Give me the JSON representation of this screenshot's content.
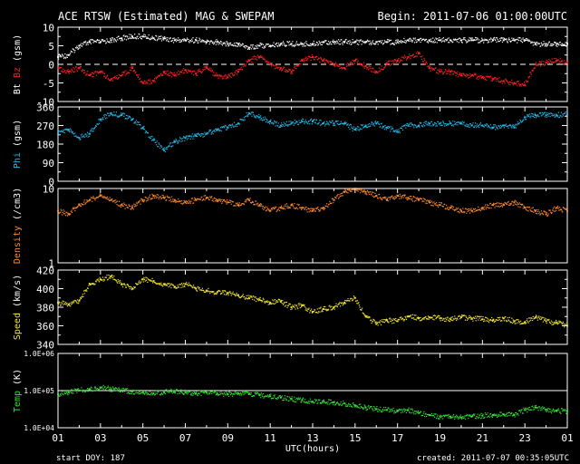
{
  "header": {
    "title": "ACE RTSW (Estimated) MAG & SWEPAM",
    "begin": "Begin: 2011-07-06 01:00:00UTC"
  },
  "footer": {
    "start_doy": "start DOY: 187",
    "created": "created: 2011-07-07 00:35:05UTC"
  },
  "colors": {
    "background": "#000000",
    "axes": "#ffffff",
    "bt": "#ffffff",
    "bz": "#ff2020",
    "phi": "#22b8e8",
    "density": "#ff8a2a",
    "speed": "#f2e633",
    "temp": "#33e033"
  },
  "chart_data": {
    "type": "scatter",
    "title": "ACE RTSW (Estimated) MAG & SWEPAM",
    "xlabel": "UTC(hours)",
    "x_tick_labels": [
      "01",
      "03",
      "05",
      "07",
      "09",
      "11",
      "13",
      "15",
      "17",
      "19",
      "21",
      "23",
      "01"
    ],
    "x_start": "2011-07-06 01:00:00UTC",
    "x_range_hours": [
      1,
      25
    ],
    "panels": [
      {
        "id": "mag",
        "ylabel_parts": [
          {
            "text": "Bt",
            "color": "#ffffff"
          },
          {
            "text": "Bz",
            "color": "#ff2020"
          },
          {
            "text": "(gsm)",
            "color": "#ffffff"
          }
        ],
        "ylim": [
          -10,
          10
        ],
        "yticks": [
          -10,
          -5,
          0,
          5,
          10
        ],
        "zero_line": true,
        "series": [
          {
            "name": "Bt",
            "color": "#ffffff",
            "x": [
              1,
              1.5,
              2,
              2.5,
              3,
              3.5,
              4,
              4.5,
              5,
              5.5,
              6,
              6.5,
              7,
              7.5,
              8,
              8.5,
              9,
              9.5,
              10,
              10.5,
              11,
              11.5,
              12,
              12.5,
              13,
              13.5,
              14,
              14.5,
              15,
              15.5,
              16,
              16.5,
              17,
              17.5,
              18,
              18.5,
              19,
              19.5,
              20,
              20.5,
              21,
              21.5,
              22,
              22.5,
              23,
              23.5,
              24,
              24.5,
              25
            ],
            "y": [
              2,
              2.5,
              5,
              6,
              6,
              6.5,
              7,
              7.5,
              7.5,
              7,
              7,
              6.5,
              6.5,
              6.5,
              6,
              6,
              5.5,
              5.5,
              4.5,
              5,
              5,
              5.5,
              5.5,
              5.5,
              5.5,
              6,
              6,
              6,
              6,
              6,
              6,
              6,
              6,
              6.5,
              6.5,
              6.5,
              6.5,
              6.5,
              6.5,
              6.5,
              6.5,
              6.5,
              6.5,
              6.5,
              6.5,
              5.5,
              5.5,
              5.5,
              5.5
            ]
          },
          {
            "name": "Bz",
            "color": "#ff2020",
            "x": [
              1,
              1.5,
              2,
              2.5,
              3,
              3.5,
              4,
              4.5,
              5,
              5.5,
              6,
              6.5,
              7,
              7.5,
              8,
              8.5,
              9,
              9.5,
              10,
              10.5,
              11,
              11.5,
              12,
              12.5,
              13,
              13.5,
              14,
              14.5,
              15,
              15.5,
              16,
              16.5,
              17,
              17.5,
              18,
              18.5,
              19,
              19.5,
              20,
              20.5,
              21,
              21.5,
              22,
              22.5,
              23,
              23.5,
              24,
              24.5,
              25
            ],
            "y": [
              -1,
              -2,
              -1,
              -3,
              -2,
              -4,
              -3,
              -1,
              -5,
              -4.5,
              -2,
              -3,
              -1.5,
              -2.5,
              -1,
              -3,
              -3.5,
              -2,
              1,
              2,
              0,
              -1,
              -2,
              1,
              2,
              1,
              0,
              -1,
              1,
              -0.5,
              -2,
              0,
              1,
              2,
              3,
              -1,
              -2,
              -2,
              -3,
              -3,
              -3.5,
              -4,
              -4.5,
              -5,
              -5.5,
              0,
              0.5,
              1,
              0.5
            ]
          }
        ]
      },
      {
        "id": "phi",
        "ylabel_parts": [
          {
            "text": "Phi",
            "color": "#22b8e8"
          },
          {
            "text": "(gsm)",
            "color": "#ffffff"
          }
        ],
        "ylim": [
          0,
          360
        ],
        "yticks": [
          0,
          90,
          180,
          270,
          360
        ],
        "series": [
          {
            "name": "Phi",
            "color": "#22b8e8",
            "x": [
              1,
              1.5,
              2,
              2.5,
              3,
              3.5,
              4,
              4.5,
              5,
              5.5,
              6,
              6.5,
              7,
              7.5,
              8,
              8.5,
              9,
              9.5,
              10,
              10.5,
              11,
              11.5,
              12,
              12.5,
              13,
              13.5,
              14,
              14.5,
              15,
              15.5,
              16,
              16.5,
              17,
              17.5,
              18,
              18.5,
              19,
              19.5,
              20,
              20.5,
              21,
              21.5,
              22,
              22.5,
              23,
              23.5,
              24,
              24.5,
              25
            ],
            "y": [
              230,
              250,
              210,
              230,
              300,
              330,
              320,
              300,
              260,
              200,
              150,
              190,
              210,
              220,
              230,
              250,
              260,
              280,
              330,
              310,
              290,
              270,
              280,
              290,
              290,
              280,
              280,
              280,
              250,
              270,
              280,
              260,
              240,
              270,
              270,
              280,
              280,
              280,
              280,
              270,
              270,
              260,
              270,
              260,
              310,
              320,
              320,
              320,
              325
            ]
          }
        ]
      },
      {
        "id": "density",
        "ylabel_parts": [
          {
            "text": "Density",
            "color": "#ff8a2a"
          },
          {
            "text": "(/cm3)",
            "color": "#ffffff"
          }
        ],
        "scale": "log",
        "ylim": [
          1,
          10
        ],
        "yticks": [
          1,
          10
        ],
        "series": [
          {
            "name": "Density",
            "color": "#ff8a2a",
            "x": [
              1,
              1.5,
              2,
              2.5,
              3,
              3.5,
              4,
              4.5,
              5,
              5.5,
              6,
              6.5,
              7,
              7.5,
              8,
              8.5,
              9,
              9.5,
              10,
              10.5,
              11,
              11.5,
              12,
              12.5,
              13,
              13.5,
              14,
              14.5,
              15,
              15.5,
              16,
              16.5,
              17,
              17.5,
              18,
              18.5,
              19,
              19.5,
              20,
              20.5,
              21,
              21.5,
              22,
              22.5,
              23,
              23.5,
              24,
              24.5,
              25
            ],
            "y": [
              5,
              4.5,
              6,
              7,
              8,
              7,
              6,
              5.5,
              7,
              8,
              7.5,
              7,
              6.5,
              7,
              7.5,
              7,
              6.5,
              6,
              7,
              6,
              5,
              5.5,
              6,
              5.5,
              5,
              5.5,
              7,
              9,
              10,
              9,
              8,
              7,
              8,
              7.5,
              7,
              6.5,
              6,
              5.5,
              5,
              5,
              5.5,
              6,
              6,
              6.5,
              5.5,
              5,
              4.5,
              5.5,
              5
            ]
          }
        ]
      },
      {
        "id": "speed",
        "ylabel_parts": [
          {
            "text": "Speed",
            "color": "#f2e633"
          },
          {
            "text": "(km/s)",
            "color": "#ffffff"
          }
        ],
        "ylim": [
          340,
          420
        ],
        "yticks": [
          340,
          360,
          380,
          400,
          420
        ],
        "series": [
          {
            "name": "Speed",
            "color": "#f2e633",
            "x": [
              1,
              1.5,
              2,
              2.5,
              3,
              3.5,
              4,
              4.5,
              5,
              5.5,
              6,
              6.5,
              7,
              7.5,
              8,
              8.5,
              9,
              9.5,
              10,
              10.5,
              11,
              11.5,
              12,
              12.5,
              13,
              13.5,
              14,
              14.5,
              15,
              15.5,
              16,
              16.5,
              17,
              17.5,
              18,
              18.5,
              19,
              19.5,
              20,
              20.5,
              21,
              21.5,
              22,
              22.5,
              23,
              23.5,
              24,
              24.5,
              25
            ],
            "y": [
              385,
              383,
              387,
              405,
              410,
              413,
              405,
              400,
              410,
              408,
              405,
              402,
              405,
              400,
              398,
              396,
              395,
              393,
              390,
              388,
              385,
              386,
              380,
              382,
              375,
              378,
              380,
              385,
              390,
              370,
              362,
              366,
              365,
              370,
              368,
              369,
              368,
              367,
              369,
              368,
              367,
              366,
              368,
              365,
              364,
              369,
              365,
              363,
              360
            ]
          }
        ]
      },
      {
        "id": "temp",
        "ylabel_parts": [
          {
            "text": "Temp",
            "color": "#33e033"
          },
          {
            "text": "(K)",
            "color": "#ffffff"
          }
        ],
        "scale": "log",
        "ylim": [
          10000,
          1000000
        ],
        "yticks": [
          10000,
          100000,
          1000000
        ],
        "ytick_labels": [
          "1.0E+04",
          "1.0E+05",
          "1.0E+06"
        ],
        "ref_line": 100000,
        "series": [
          {
            "name": "Temp",
            "color": "#33e033",
            "x": [
              1,
              1.5,
              2,
              2.5,
              3,
              3.5,
              4,
              4.5,
              5,
              5.5,
              6,
              6.5,
              7,
              7.5,
              8,
              8.5,
              9,
              9.5,
              10,
              10.5,
              11,
              11.5,
              12,
              12.5,
              13,
              13.5,
              14,
              14.5,
              15,
              15.5,
              16,
              16.5,
              17,
              17.5,
              18,
              18.5,
              19,
              19.5,
              20,
              20.5,
              21,
              21.5,
              22,
              22.5,
              23,
              23.5,
              24,
              24.5,
              25
            ],
            "y": [
              80000,
              90000,
              100000,
              110000,
              120000,
              110000,
              100000,
              95000,
              90000,
              85000,
              90000,
              95000,
              90000,
              85000,
              88000,
              85000,
              80000,
              85000,
              80000,
              75000,
              70000,
              65000,
              60000,
              55000,
              50000,
              52000,
              48000,
              45000,
              40000,
              35000,
              32000,
              30000,
              28000,
              30000,
              25000,
              22000,
              20000,
              20000,
              19000,
              20000,
              21000,
              22000,
              23000,
              22000,
              30000,
              35000,
              30000,
              28000,
              28000
            ]
          }
        ]
      }
    ]
  }
}
